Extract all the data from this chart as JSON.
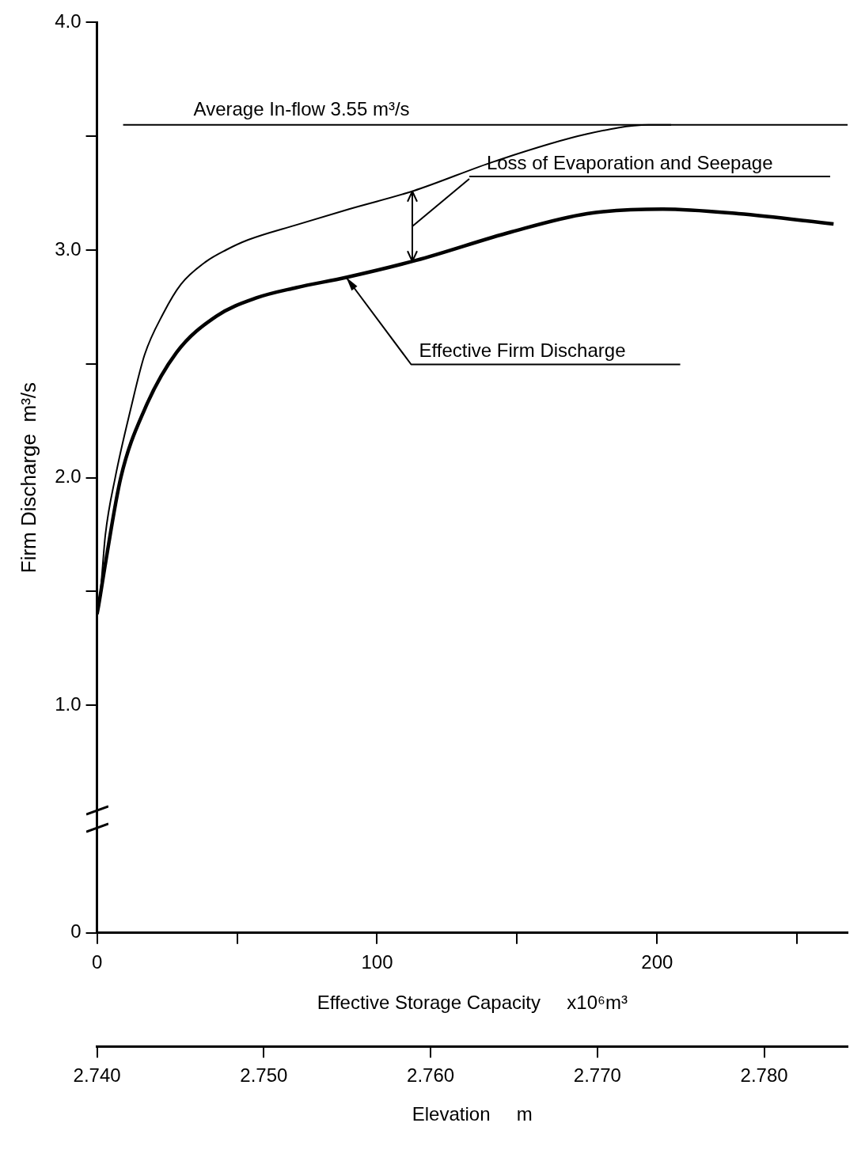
{
  "chart_data": {
    "type": "line",
    "xlabel": "Effective Storage Capacity     x10⁶m³",
    "ylabel": "Firm Discharge  m³/s",
    "x2label": "Elevation     m",
    "xlim": [
      0,
      268
    ],
    "xticks": [
      0,
      {
        "value": 50,
        "label": null
      },
      100,
      {
        "value": 150,
        "label": null
      },
      200,
      {
        "value": 250,
        "label": null
      }
    ],
    "x2lim": [
      2.74,
      2.785
    ],
    "x2ticks": [
      {
        "value": 2.74,
        "label": "2.740"
      },
      {
        "value": 2.75,
        "label": "2.750"
      },
      {
        "value": 2.76,
        "label": "2.760"
      },
      {
        "value": 2.77,
        "label": "2.770"
      },
      {
        "value": 2.78,
        "label": "2.780"
      }
    ],
    "ylim": [
      0,
      4.0
    ],
    "yticks": [
      0,
      {
        "value": 1,
        "label": "1.0"
      },
      {
        "value": 1.5,
        "label": null
      },
      {
        "value": 2,
        "label": "2.0"
      },
      {
        "value": 2.5,
        "label": null
      },
      {
        "value": 3,
        "label": "3.0"
      },
      {
        "value": 3.5,
        "label": null
      },
      {
        "value": 4,
        "label": "4.0"
      }
    ],
    "series": [
      {
        "color": "#000000",
        "x": [
          0,
          1,
          3,
          6.5,
          12,
          17,
          23.6,
          30,
          39,
          46,
          54,
          71,
          90,
          113,
          142,
          175,
          197,
          205
        ],
        "values": [
          1.42,
          1.47,
          1.75,
          2.0,
          2.3,
          2.54,
          2.72,
          2.85,
          2.95,
          3.0,
          3.045,
          3.11,
          3.18,
          3.26,
          3.39,
          3.51,
          3.55,
          3.55
        ]
      },
      {
        "color": "#000000",
        "x": [
          0,
          0.6,
          3.1,
          8.5,
          17,
          28.4,
          42.7,
          56.9,
          71.1,
          89,
          114,
          148,
          175,
          202,
          229,
          263
        ],
        "values": [
          1.4,
          1.44,
          1.63,
          2.0,
          2.3,
          2.55,
          2.71,
          2.79,
          2.835,
          2.88,
          2.955,
          3.08,
          3.16,
          3.18,
          3.16,
          3.115
        ]
      }
    ],
    "ref_lines": [
      {
        "axis": "y",
        "value": 3.55,
        "label": "Average In-flow 3.55 m³/s",
        "color": "#000000"
      }
    ],
    "annotations": [
      "Loss of Evaporation and Seepage",
      {
        "text": "Effective Firm Discharge",
        "x": 89,
        "y": 2.88
      }
    ]
  }
}
